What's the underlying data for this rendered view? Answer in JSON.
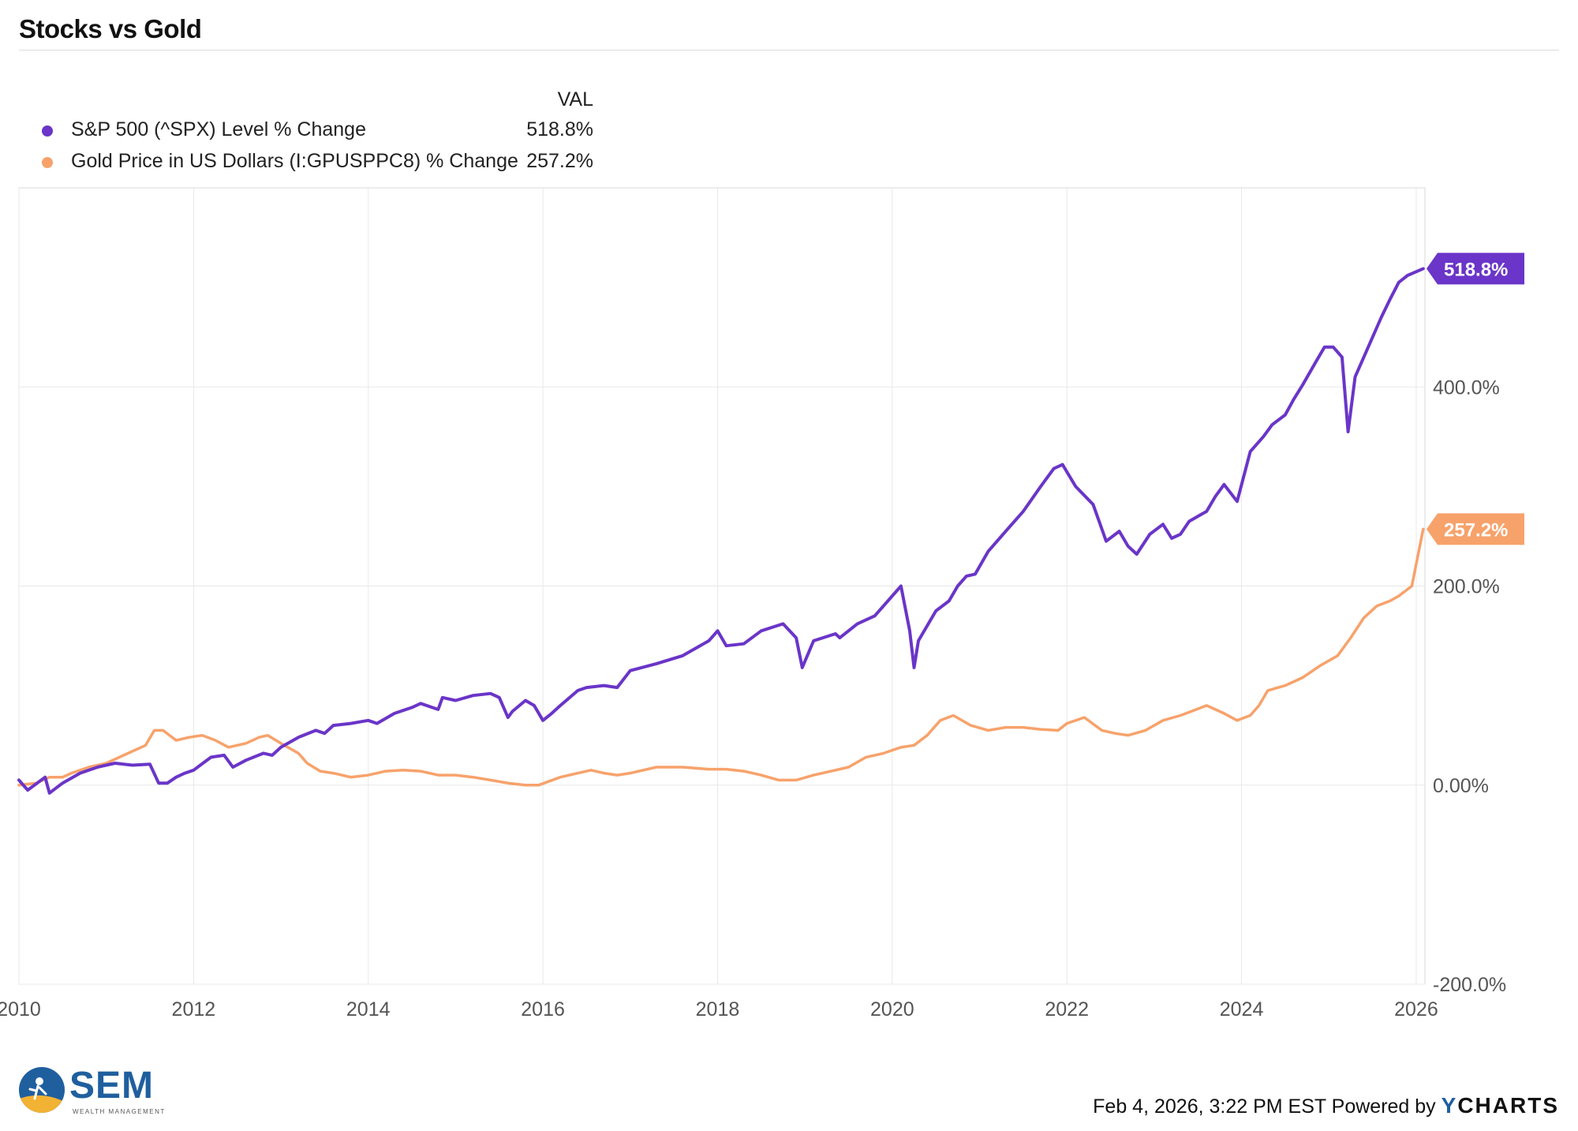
{
  "chart_data": {
    "type": "line",
    "title": "Stocks vs Gold",
    "legend_header": "VAL",
    "x_ticks": [
      "2010",
      "2012",
      "2014",
      "2016",
      "2018",
      "2020",
      "2022",
      "2024",
      "2026"
    ],
    "x_tick_values": [
      2010,
      2012,
      2014,
      2016,
      2018,
      2020,
      2022,
      2024,
      2026
    ],
    "y_ticks": [
      "-200.0%",
      "0.00%",
      "200.0%",
      "400.0%"
    ],
    "y_tick_values": [
      -200,
      0,
      200,
      400
    ],
    "xlim": [
      2010.0,
      2026.1
    ],
    "ylim": [
      -200,
      600
    ],
    "grid": true,
    "series": [
      {
        "name": "S&P 500 (^SPX) Level % Change",
        "value_label": "518.8%",
        "color": "#6a35c8",
        "x": [
          2010.0,
          2010.1,
          2010.3,
          2010.35,
          2010.5,
          2010.7,
          2010.9,
          2011.1,
          2011.3,
          2011.5,
          2011.6,
          2011.7,
          2011.8,
          2011.9,
          2012.0,
          2012.2,
          2012.35,
          2012.45,
          2012.6,
          2012.8,
          2012.9,
          2013.0,
          2013.2,
          2013.4,
          2013.5,
          2013.6,
          2013.8,
          2014.0,
          2014.1,
          2014.3,
          2014.5,
          2014.6,
          2014.8,
          2014.85,
          2015.0,
          2015.2,
          2015.4,
          2015.5,
          2015.6,
          2015.65,
          2015.8,
          2015.9,
          2016.0,
          2016.1,
          2016.2,
          2016.4,
          2016.5,
          2016.7,
          2016.85,
          2017.0,
          2017.3,
          2017.6,
          2017.9,
          2018.0,
          2018.1,
          2018.3,
          2018.5,
          2018.75,
          2018.9,
          2018.97,
          2019.1,
          2019.35,
          2019.4,
          2019.6,
          2019.8,
          2019.95,
          2020.1,
          2020.2,
          2020.25,
          2020.3,
          2020.5,
          2020.65,
          2020.75,
          2020.85,
          2020.95,
          2021.1,
          2021.3,
          2021.5,
          2021.7,
          2021.85,
          2021.95,
          2022.1,
          2022.3,
          2022.45,
          2022.6,
          2022.7,
          2022.8,
          2022.95,
          2023.1,
          2023.2,
          2023.3,
          2023.4,
          2023.6,
          2023.7,
          2023.8,
          2023.95,
          2024.1,
          2024.25,
          2024.35,
          2024.5,
          2024.6,
          2024.7,
          2024.85,
          2024.95,
          2025.05,
          2025.15,
          2025.22,
          2025.3,
          2025.45,
          2025.6,
          2025.7,
          2025.8,
          2025.9,
          2026.08
        ],
        "y": [
          5,
          -5,
          8,
          -8,
          2,
          12,
          18,
          22,
          20,
          21,
          2,
          2,
          8,
          12,
          15,
          28,
          30,
          18,
          25,
          32,
          30,
          38,
          48,
          55,
          52,
          60,
          62,
          65,
          62,
          72,
          78,
          82,
          76,
          88,
          85,
          90,
          92,
          88,
          68,
          74,
          85,
          80,
          65,
          72,
          80,
          95,
          98,
          100,
          98,
          115,
          122,
          130,
          145,
          155,
          140,
          142,
          155,
          162,
          148,
          118,
          145,
          152,
          148,
          162,
          170,
          185,
          200,
          155,
          118,
          145,
          175,
          185,
          200,
          210,
          212,
          235,
          255,
          275,
          300,
          318,
          322,
          300,
          282,
          245,
          255,
          240,
          232,
          252,
          262,
          248,
          252,
          265,
          275,
          290,
          302,
          285,
          335,
          350,
          362,
          372,
          388,
          402,
          425,
          440,
          440,
          430,
          355,
          410,
          440,
          470,
          488,
          505,
          512,
          518.8
        ]
      },
      {
        "name": "Gold Price in US Dollars (I:GPUSPPC8) % Change",
        "value_label": "257.2%",
        "color": "#f7a26b",
        "x": [
          2010.0,
          2010.2,
          2010.35,
          2010.5,
          2010.6,
          2010.8,
          2011.0,
          2011.2,
          2011.45,
          2011.55,
          2011.65,
          2011.8,
          2011.95,
          2012.1,
          2012.25,
          2012.4,
          2012.6,
          2012.75,
          2012.85,
          2013.0,
          2013.2,
          2013.3,
          2013.45,
          2013.6,
          2013.8,
          2014.0,
          2014.2,
          2014.4,
          2014.6,
          2014.8,
          2015.0,
          2015.2,
          2015.4,
          2015.6,
          2015.8,
          2015.95,
          2016.2,
          2016.4,
          2016.55,
          2016.7,
          2016.85,
          2017.0,
          2017.3,
          2017.6,
          2017.9,
          2018.1,
          2018.3,
          2018.5,
          2018.7,
          2018.9,
          2019.1,
          2019.3,
          2019.5,
          2019.7,
          2019.9,
          2020.1,
          2020.25,
          2020.4,
          2020.55,
          2020.7,
          2020.9,
          2021.1,
          2021.3,
          2021.5,
          2021.7,
          2021.9,
          2022.0,
          2022.2,
          2022.4,
          2022.55,
          2022.7,
          2022.9,
          2023.1,
          2023.3,
          2023.45,
          2023.6,
          2023.8,
          2023.95,
          2024.1,
          2024.2,
          2024.3,
          2024.5,
          2024.7,
          2024.9,
          2025.1,
          2025.25,
          2025.4,
          2025.55,
          2025.7,
          2025.8,
          2025.95,
          2026.08
        ],
        "y": [
          0,
          2,
          8,
          8,
          12,
          18,
          22,
          30,
          40,
          55,
          55,
          45,
          48,
          50,
          45,
          38,
          42,
          48,
          50,
          42,
          32,
          22,
          14,
          12,
          8,
          10,
          14,
          15,
          14,
          10,
          10,
          8,
          5,
          2,
          0,
          0,
          8,
          12,
          15,
          12,
          10,
          12,
          18,
          18,
          16,
          16,
          14,
          10,
          5,
          5,
          10,
          14,
          18,
          28,
          32,
          38,
          40,
          50,
          65,
          70,
          60,
          55,
          58,
          58,
          56,
          55,
          62,
          68,
          55,
          52,
          50,
          55,
          65,
          70,
          75,
          80,
          72,
          65,
          70,
          80,
          95,
          100,
          108,
          120,
          130,
          148,
          168,
          180,
          185,
          190,
          200,
          257.2
        ]
      }
    ]
  },
  "footer": {
    "logo_text": "SEM",
    "logo_subtext": "WEALTH MANAGEMENT",
    "timestamp": "Feb 4, 2026, 3:22 PM EST",
    "powered_by": "Powered by",
    "brand_y": "Y",
    "brand_rest": "CHARTS"
  }
}
